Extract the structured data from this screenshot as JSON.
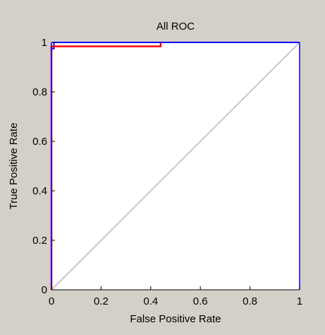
{
  "chart_data": {
    "type": "line",
    "title": "All ROC",
    "xlabel": "False Positive Rate",
    "ylabel": "True Positive Rate",
    "xlim": [
      0,
      1
    ],
    "ylim": [
      0,
      1
    ],
    "xticks": [
      "0",
      "0.2",
      "0.4",
      "0.6",
      "0.8",
      "1"
    ],
    "yticks": [
      "0",
      "0.2",
      "0.4",
      "0.6",
      "0.8",
      "1"
    ],
    "grid": false,
    "series": [
      {
        "color": "#c8c8c8",
        "x": [
          0,
          1
        ],
        "y": [
          0,
          1
        ]
      },
      {
        "color": "#0000ff",
        "x": [
          0,
          0,
          0.01,
          0.01,
          0.09,
          0.09,
          1
        ],
        "y": [
          0,
          0.975,
          0.975,
          1.0,
          1.0,
          1.0,
          1.0
        ]
      },
      {
        "color": "#ff0000",
        "x": [
          0,
          0,
          0.44,
          0.44
        ],
        "y": [
          0,
          0.984,
          0.984,
          1.0
        ]
      }
    ]
  }
}
